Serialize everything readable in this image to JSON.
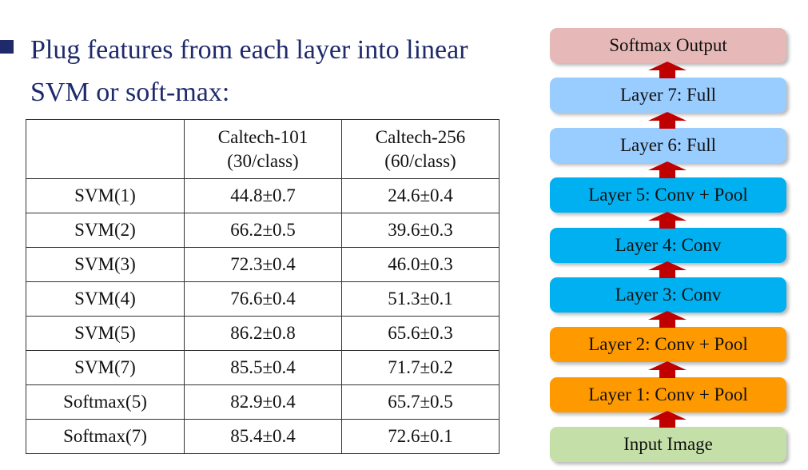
{
  "bullet": {
    "text": "Plug features from each layer into linear SVM or soft-max:"
  },
  "table": {
    "headers": [
      "",
      "Caltech-101\n(30/class)",
      "Caltech-256\n(60/class)"
    ],
    "rows": [
      [
        "SVM(1)",
        "44.8±0.7",
        "24.6±0.4"
      ],
      [
        "SVM(2)",
        "66.2±0.5",
        "39.6±0.3"
      ],
      [
        "SVM(3)",
        "72.3±0.4",
        "46.0±0.3"
      ],
      [
        "SVM(4)",
        "76.6±0.4",
        "51.3±0.1"
      ],
      [
        "SVM(5)",
        "86.2±0.8",
        "65.6±0.3"
      ],
      [
        "SVM(7)",
        "85.5±0.4",
        "71.7±0.2"
      ],
      [
        "Softmax(5)",
        "82.9±0.4",
        "65.7±0.5"
      ],
      [
        "Softmax(7)",
        "85.4±0.4",
        "72.6±0.1"
      ]
    ]
  },
  "network": {
    "arrow_color": "#c00000",
    "layers": [
      {
        "label": "Softmax Output",
        "color": "#e6b9b8",
        "name": "layer-softmax-output"
      },
      {
        "label": "Layer 7: Full",
        "color": "#99ccff",
        "name": "layer-7-full"
      },
      {
        "label": "Layer 6: Full",
        "color": "#99ccff",
        "name": "layer-6-full"
      },
      {
        "label": "Layer 5: Conv + Pool",
        "color": "#00b0f0",
        "name": "layer-5-conv-pool"
      },
      {
        "label": "Layer 4: Conv",
        "color": "#00b0f0",
        "name": "layer-4-conv"
      },
      {
        "label": "Layer 3: Conv",
        "color": "#00b0f0",
        "name": "layer-3-conv"
      },
      {
        "label": "Layer 2: Conv + Pool",
        "color": "#ff9900",
        "name": "layer-2-conv-pool"
      },
      {
        "label": "Layer 1: Conv + Pool",
        "color": "#ff9900",
        "name": "layer-1-conv-pool"
      },
      {
        "label": "Input Image",
        "color": "#c4e0a8",
        "name": "layer-input-image"
      }
    ]
  }
}
